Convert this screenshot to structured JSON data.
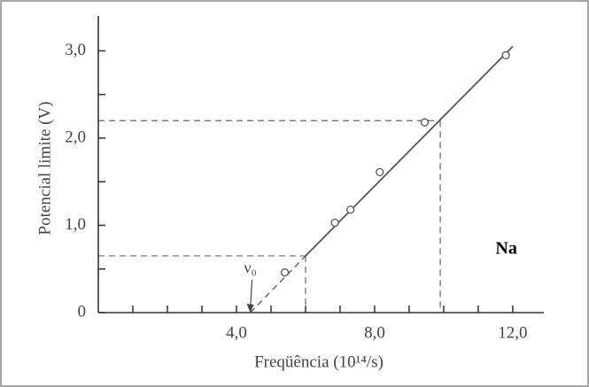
{
  "chart_data": {
    "type": "scatter",
    "x_label": "Freqüência (10¹⁴/s)",
    "y_label": "Potencial limite (V)",
    "xlim": [
      0,
      12.9
    ],
    "ylim": [
      0,
      3.4
    ],
    "xticks": [
      {
        "value": 4,
        "label": "4,0"
      },
      {
        "value": 8,
        "label": "8,0"
      },
      {
        "value": 12,
        "label": "12,0"
      }
    ],
    "xticks_minor": [
      1,
      2,
      3,
      5,
      6,
      7,
      9,
      10,
      11
    ],
    "yticks": [
      0,
      {
        "value": 1,
        "label": "1,0"
      },
      {
        "value": 2,
        "label": "2,0"
      },
      {
        "value": 3,
        "label": "3,0"
      }
    ],
    "yticks_minor": [
      0.5,
      1.5,
      2.5
    ],
    "series": [
      {
        "name": "Na",
        "color": "#555555",
        "x": [
          5.4,
          6.85,
          7.3,
          8.15,
          9.45,
          11.8
        ],
        "values": [
          0.46,
          1.03,
          1.18,
          1.61,
          2.18,
          2.95
        ]
      }
    ],
    "fit_line": {
      "x": [
        6.0,
        12.0
      ],
      "y": [
        0.65,
        3.05
      ]
    },
    "extrapolation": {
      "x": [
        4.4,
        6.0
      ],
      "y": [
        0,
        0.65
      ]
    },
    "reference_points": [
      {
        "x": 6.0,
        "y": 0.65
      },
      {
        "x": 9.9,
        "y": 2.2
      }
    ],
    "annotations": [
      {
        "text": "Na",
        "x": 11.5,
        "y": 0.72
      },
      {
        "text": "ν₀",
        "x": 4.4,
        "y": 0.5
      }
    ]
  }
}
